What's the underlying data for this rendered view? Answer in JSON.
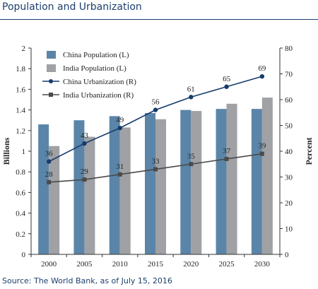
{
  "page": {
    "title": "Population and Urbanization",
    "source": "Source: The World Bank, as of July 15, 2016"
  },
  "chart_data": {
    "type": "bar",
    "categories": [
      "2000",
      "2005",
      "2010",
      "2015",
      "2020",
      "2025",
      "2030"
    ],
    "series": [
      {
        "name": "China Population (L)",
        "kind": "bar",
        "axis": "left",
        "color": "#5b85a8",
        "values": [
          1.26,
          1.3,
          1.34,
          1.37,
          1.4,
          1.41,
          1.41
        ]
      },
      {
        "name": "India Population (L)",
        "kind": "bar",
        "axis": "left",
        "color": "#9fa1a4",
        "values": [
          1.05,
          1.14,
          1.23,
          1.31,
          1.39,
          1.46,
          1.52
        ]
      },
      {
        "name": "China Urbanization (R)",
        "kind": "line",
        "axis": "right",
        "color": "#163c6b",
        "marker": "circle",
        "values": [
          36,
          43,
          49,
          56,
          61,
          65,
          69
        ],
        "labels": [
          "36",
          "43",
          "49",
          "56",
          "61",
          "65",
          "69"
        ]
      },
      {
        "name": "India Urbanization (R)",
        "kind": "line",
        "axis": "right",
        "color": "#4a4a4a",
        "marker": "square",
        "values": [
          28,
          29,
          31,
          33,
          35,
          37,
          39
        ],
        "labels": [
          "28",
          "29",
          "31",
          "33",
          "35",
          "37",
          "39"
        ]
      }
    ],
    "ylabel_left": "Billions",
    "ylabel_right": "Percent",
    "ylim_left": [
      0,
      2
    ],
    "ylim_right": [
      0,
      80
    ],
    "yticks_left": [
      "0",
      "0.2",
      "0.4",
      "0.6",
      "0.8",
      "1",
      "1.2",
      "1.4",
      "1.6",
      "1.8",
      "2"
    ],
    "yticks_right": [
      "0",
      "10",
      "20",
      "30",
      "40",
      "50",
      "60",
      "70",
      "80"
    ],
    "grid": false,
    "legend_position": "top-left"
  }
}
